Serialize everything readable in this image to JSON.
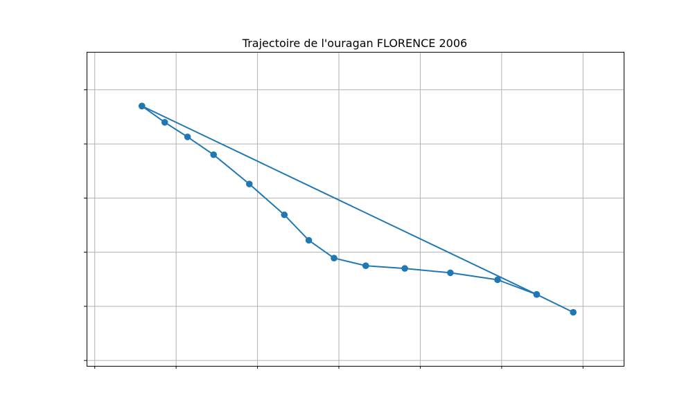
{
  "chart_data": {
    "type": "line",
    "title": "Trajectoire de l'ouragan FLORENCE 2006",
    "xlabel": "",
    "ylabel": "",
    "grid": true,
    "legend": "none",
    "xlim": [
      -0.6,
      6.0
    ],
    "ylim": [
      -0.1,
      5.7
    ],
    "x_gridlines": [
      -0.5,
      0.5,
      1.5,
      2.5,
      3.5,
      4.5,
      5.5
    ],
    "y_gridlines": [
      0.0,
      1.0,
      2.0,
      3.0,
      4.0,
      5.0
    ],
    "series": [
      {
        "marker": "circle",
        "points": [
          [
            0.08,
            4.7
          ],
          [
            0.36,
            4.4
          ],
          [
            0.64,
            4.13
          ],
          [
            0.96,
            3.8
          ],
          [
            1.4,
            3.26
          ],
          [
            1.83,
            2.69
          ],
          [
            2.13,
            2.22
          ],
          [
            2.44,
            1.89
          ],
          [
            2.83,
            1.75
          ],
          [
            3.31,
            1.7
          ],
          [
            3.87,
            1.62
          ],
          [
            4.45,
            1.49
          ],
          [
            4.93,
            1.22
          ],
          [
            5.38,
            0.89
          ],
          [
            4.93,
            1.22
          ],
          [
            0.08,
            4.7
          ]
        ]
      }
    ],
    "colors": {
      "series": "#1f77b4",
      "grid": "#b0b0b0",
      "axes": "#000000"
    }
  }
}
